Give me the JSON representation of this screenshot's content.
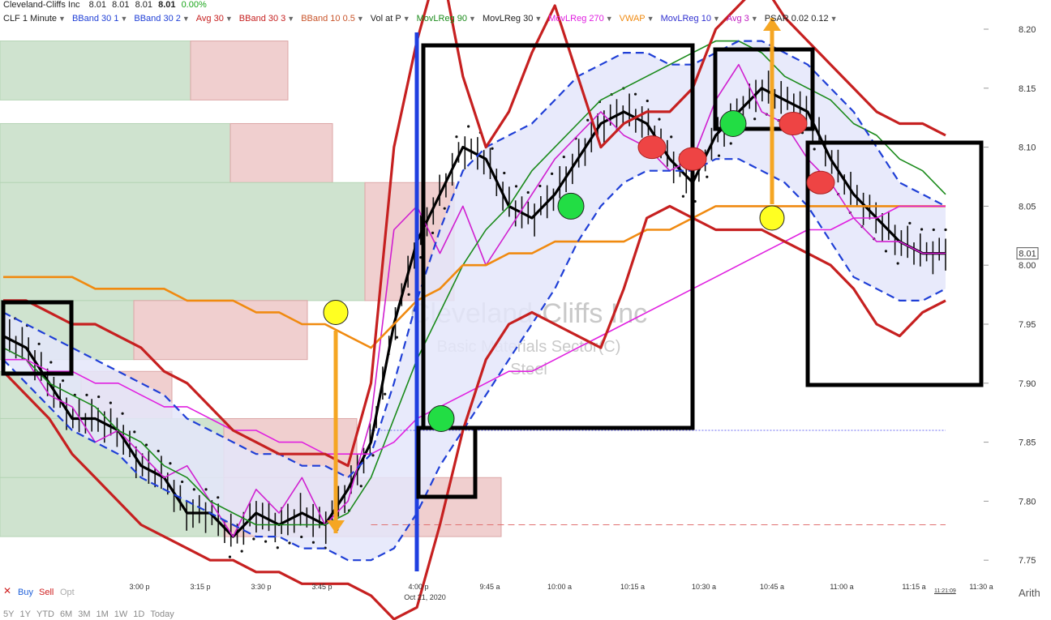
{
  "header": {
    "company": "Cleveland-Cliffs Inc",
    "quotes": [
      "8.01",
      "8.01",
      "8.01"
    ],
    "last": "8.01",
    "change": "0.00%",
    "studies": [
      {
        "label": "CLF 1 Minute",
        "color": "#222222"
      },
      {
        "label": "BBand 30 1",
        "color": "#1f3fd6"
      },
      {
        "label": "BBand 30 2",
        "color": "#1f3fd6"
      },
      {
        "label": "Avg 30",
        "color": "#c62020"
      },
      {
        "label": "BBand 30 3",
        "color": "#c62020"
      },
      {
        "label": "BBand 10 0.5",
        "color": "#c8542a"
      },
      {
        "label": "Vol at P",
        "color": "#222222"
      },
      {
        "label": "MovLReg 90",
        "color": "#1a8a1a"
      },
      {
        "label": "MovLReg 30",
        "color": "#222222"
      },
      {
        "label": "MovLReg 270",
        "color": "#e020e0"
      },
      {
        "label": "VWAP",
        "color": "#f08a10"
      },
      {
        "label": "MovLReg 10",
        "color": "#3030d0"
      },
      {
        "label": "Avg 3",
        "color": "#c020c0"
      },
      {
        "label": "PSAR 0.02 0.12",
        "color": "#222222"
      }
    ]
  },
  "chart_data": {
    "type": "line",
    "title": "",
    "xlabel": "",
    "ylabel": "",
    "ylim": [
      7.72,
      8.21
    ],
    "y_ticks": [
      "8.20",
      "8.15",
      "8.10",
      "8.05",
      "8.00",
      "7.95",
      "7.90",
      "7.85",
      "7.80",
      "7.75"
    ],
    "x_ticks": [
      "3:00 p",
      "3:15 p",
      "3:30 p",
      "3:45 p",
      "4:00 p",
      "9:45 a",
      "10:00 a",
      "10:15 a",
      "10:30 a",
      "10:45 a",
      "11:00 a",
      "11:15 a",
      "11:30 a"
    ],
    "session_date_label": "Oct 21, 2020",
    "last_price_label": "8.01",
    "watermark": {
      "name": "Cleveland-Cliffs Inc",
      "sector": "Basic Materials Sector(C)",
      "industry": "Steel"
    },
    "series": [
      {
        "name": "MovLReg 30",
        "color": "#000000",
        "values": [
          7.94,
          7.93,
          7.9,
          7.87,
          7.87,
          7.86,
          7.83,
          7.82,
          7.79,
          7.79,
          7.77,
          7.79,
          7.78,
          7.79,
          7.78,
          7.81,
          7.85,
          7.95,
          8.02,
          8.06,
          8.1,
          8.09,
          8.05,
          8.04,
          8.06,
          8.09,
          8.12,
          8.13,
          8.12,
          8.09,
          8.07,
          8.11,
          8.13,
          8.15,
          8.14,
          8.13,
          8.09,
          8.06,
          8.04,
          8.02,
          8.01,
          8.01
        ]
      },
      {
        "name": "Avg 3",
        "color": "#d020d0",
        "values": [
          7.93,
          7.92,
          7.89,
          7.88,
          7.85,
          7.86,
          7.84,
          7.82,
          7.83,
          7.8,
          7.77,
          7.81,
          7.79,
          7.82,
          7.78,
          7.8,
          7.87,
          8.03,
          8.05,
          8.01,
          8.05,
          8.0,
          8.03,
          8.06,
          8.09,
          8.11,
          8.13,
          8.11,
          8.1,
          8.08,
          8.09,
          8.14,
          8.17,
          8.13,
          8.12,
          8.09,
          8.07,
          8.04,
          8.02,
          8.02,
          8.01,
          8.01
        ]
      },
      {
        "name": "MovLReg 90",
        "color": "#1a8a1a",
        "values": [
          7.93,
          7.92,
          7.9,
          7.89,
          7.88,
          7.86,
          7.85,
          7.83,
          7.82,
          7.8,
          7.79,
          7.78,
          7.78,
          7.78,
          7.78,
          7.79,
          7.82,
          7.87,
          7.92,
          7.96,
          8.0,
          8.03,
          8.05,
          8.08,
          8.1,
          8.12,
          8.14,
          8.15,
          8.16,
          8.17,
          8.18,
          8.19,
          8.19,
          8.18,
          8.16,
          8.15,
          8.14,
          8.12,
          8.11,
          8.09,
          8.08,
          8.06
        ]
      },
      {
        "name": "VWAP",
        "color": "#f08a10",
        "values": [
          7.99,
          7.99,
          7.99,
          7.99,
          7.98,
          7.98,
          7.98,
          7.98,
          7.97,
          7.97,
          7.97,
          7.96,
          7.96,
          7.95,
          7.95,
          7.94,
          7.93,
          7.95,
          7.97,
          7.98,
          8.0,
          8.0,
          8.01,
          8.01,
          8.02,
          8.02,
          8.02,
          8.02,
          8.03,
          8.03,
          8.04,
          8.05,
          8.05,
          8.05,
          8.05,
          8.05,
          8.05,
          8.05,
          8.05,
          8.05,
          8.05,
          8.05
        ]
      },
      {
        "name": "MovLReg 270",
        "color": "#e020e0",
        "values": [
          7.92,
          7.92,
          7.91,
          7.91,
          7.9,
          7.9,
          7.89,
          7.88,
          7.88,
          7.87,
          7.86,
          7.86,
          7.85,
          7.85,
          7.84,
          7.84,
          7.84,
          7.85,
          7.87,
          7.88,
          7.89,
          7.9,
          7.91,
          7.91,
          7.92,
          7.93,
          7.94,
          7.95,
          7.96,
          7.97,
          7.98,
          7.99,
          8.0,
          8.01,
          8.02,
          8.03,
          8.03,
          8.04,
          8.04,
          8.05,
          8.05,
          8.05
        ]
      },
      {
        "name": "BBand 30 2",
        "color": "#1f3fd6",
        "values": [
          7.96,
          7.95,
          7.94,
          7.93,
          7.92,
          7.91,
          7.9,
          7.89,
          7.87,
          7.86,
          7.85,
          7.84,
          7.84,
          7.83,
          7.83,
          7.82,
          7.84,
          7.9,
          7.97,
          8.03,
          8.08,
          8.1,
          8.11,
          8.12,
          8.14,
          8.16,
          8.17,
          8.18,
          8.18,
          8.17,
          8.17,
          8.18,
          8.19,
          8.19,
          8.18,
          8.17,
          8.15,
          8.13,
          8.1,
          8.07,
          8.06,
          8.05
        ]
      },
      {
        "name": "BBand 30 2 lower",
        "color": "#1f3fd6",
        "values": [
          7.92,
          7.9,
          7.88,
          7.86,
          7.85,
          7.84,
          7.82,
          7.81,
          7.8,
          7.79,
          7.78,
          7.77,
          7.77,
          7.76,
          7.76,
          7.75,
          7.75,
          7.76,
          7.79,
          7.83,
          7.86,
          7.89,
          7.92,
          7.95,
          7.98,
          8.02,
          8.05,
          8.07,
          8.08,
          8.08,
          8.08,
          8.09,
          8.09,
          8.08,
          8.07,
          8.05,
          8.02,
          7.99,
          7.98,
          7.97,
          7.97,
          7.98
        ]
      },
      {
        "name": "BBand 30 3",
        "color": "#c62020",
        "values": [
          7.97,
          7.97,
          7.96,
          7.95,
          7.95,
          7.94,
          7.93,
          7.91,
          7.9,
          7.88,
          7.86,
          7.85,
          7.84,
          7.84,
          7.84,
          7.83,
          7.9,
          8.1,
          8.19,
          8.26,
          8.16,
          8.1,
          8.13,
          8.18,
          8.22,
          8.16,
          8.1,
          8.12,
          8.13,
          8.13,
          8.15,
          8.2,
          8.22,
          8.24,
          8.21,
          8.19,
          8.17,
          8.15,
          8.13,
          8.12,
          8.12,
          8.11
        ]
      },
      {
        "name": "BBand 30 3 lower",
        "color": "#c62020",
        "values": [
          7.91,
          7.89,
          7.87,
          7.84,
          7.82,
          7.8,
          7.78,
          7.77,
          7.76,
          7.75,
          7.75,
          7.74,
          7.74,
          7.73,
          7.73,
          7.73,
          7.72,
          7.7,
          7.71,
          7.78,
          7.86,
          7.92,
          7.95,
          7.96,
          7.95,
          7.94,
          7.93,
          7.98,
          8.04,
          8.05,
          8.04,
          8.03,
          8.03,
          8.03,
          8.02,
          8.01,
          8.0,
          7.98,
          7.95,
          7.94,
          7.96,
          7.97
        ]
      }
    ],
    "horizontal_levels": [
      {
        "value": 7.86,
        "color": "#6a6af0",
        "style": "dotted"
      },
      {
        "value": 7.78,
        "color": "#e07070",
        "style": "dashed"
      }
    ],
    "volume_at_price": [
      {
        "price_low": 8.14,
        "price_high": 8.19,
        "buy": 235,
        "sell": 120
      },
      {
        "price_low": 8.07,
        "price_high": 8.12,
        "buy": 284,
        "sell": 126
      },
      {
        "price_low": 7.97,
        "price_high": 8.07,
        "buy": 450,
        "sell": 110
      },
      {
        "price_low": 7.92,
        "price_high": 7.97,
        "buy": 165,
        "sell": 214
      },
      {
        "price_low": 7.87,
        "price_high": 7.91,
        "buy": 100,
        "sell": 112
      },
      {
        "price_low": 7.82,
        "price_high": 7.87,
        "buy": 276,
        "sell": 164
      },
      {
        "price_low": 7.77,
        "price_high": 7.82,
        "buy": 276,
        "sell": 342
      }
    ],
    "signals": [
      {
        "type": "buy",
        "x_label": "9:45 a",
        "price": 7.87,
        "color": "#22dd44"
      },
      {
        "type": "buy",
        "x_label": "10:00 a",
        "price": 8.05,
        "color": "#22dd44"
      },
      {
        "type": "sell",
        "x_label": "10:15 a",
        "price": 8.1,
        "color": "#ee4444"
      },
      {
        "type": "sell",
        "x_label": "10:30 a",
        "price": 8.09,
        "color": "#ee4444"
      },
      {
        "type": "buy",
        "x_label": "10:45 a",
        "price": 8.12,
        "color": "#22dd44"
      },
      {
        "type": "sell",
        "x_label": "10:45 a",
        "price": 8.12,
        "color": "#ee4444"
      },
      {
        "type": "sell",
        "x_label": "11:00 a",
        "price": 8.07,
        "color": "#ee4444"
      },
      {
        "type": "pivot",
        "x_label": "3:45 p",
        "price": 7.96,
        "color": "#ffff22"
      },
      {
        "type": "pivot",
        "x_label": "10:45 a",
        "price": 8.04,
        "color": "#ffff22"
      }
    ],
    "grid": false,
    "legend": "top"
  },
  "footer": {
    "buy": "Buy",
    "sell": "Sell",
    "opt": "Opt",
    "ranges": [
      "5Y",
      "1Y",
      "YTD",
      "6M",
      "3M",
      "1M",
      "1W",
      "1D",
      "Today"
    ],
    "scale": "Arith",
    "timestamp": "11:21:09"
  },
  "colors": {
    "bg": "#ffffff",
    "band_fill": "#e4e6fa",
    "volume_buy": "#cfe3cf",
    "volume_sell": "#f0cfcf"
  }
}
